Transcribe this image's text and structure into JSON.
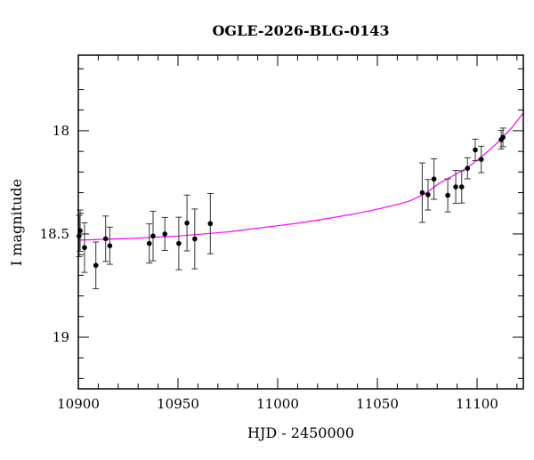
{
  "chart_data": {
    "type": "scatter",
    "title": "OGLE-2026-BLG-0143",
    "xlabel": "HJD - 2450000",
    "ylabel": "I magnitude",
    "xlim": [
      10900,
      11123.2
    ],
    "ylim": [
      19.25,
      17.634
    ],
    "y_inverted": true,
    "grid": false,
    "x_ticks": [
      10900,
      10950,
      11000,
      11050,
      11100
    ],
    "y_ticks": [
      18,
      18.5,
      19
    ],
    "x_tick_labels": [
      "10900",
      "10950",
      "11000",
      "11050",
      "11100"
    ],
    "y_tick_labels": [
      "18",
      "18.5",
      "19"
    ],
    "marker_color": "#000000",
    "model_color": "#ff00ff",
    "points": [
      {
        "x": 10900.4,
        "y": 18.51,
        "err": 0.1
      },
      {
        "x": 10900.9,
        "y": 18.484,
        "err": 0.1
      },
      {
        "x": 10903.1,
        "y": 18.566,
        "err": 0.12
      },
      {
        "x": 10908.8,
        "y": 18.652,
        "err": 0.113
      },
      {
        "x": 10913.7,
        "y": 18.523,
        "err": 0.11
      },
      {
        "x": 10915.8,
        "y": 18.557,
        "err": 0.09
      },
      {
        "x": 10935.6,
        "y": 18.546,
        "err": 0.095
      },
      {
        "x": 10937.5,
        "y": 18.51,
        "err": 0.12
      },
      {
        "x": 10943.4,
        "y": 18.5,
        "err": 0.08
      },
      {
        "x": 10950.4,
        "y": 18.546,
        "err": 0.127
      },
      {
        "x": 10954.5,
        "y": 18.447,
        "err": 0.135
      },
      {
        "x": 10958.4,
        "y": 18.524,
        "err": 0.145
      },
      {
        "x": 10966.2,
        "y": 18.45,
        "err": 0.146
      },
      {
        "x": 11072.5,
        "y": 18.3,
        "err": 0.144
      },
      {
        "x": 11075.4,
        "y": 18.31,
        "err": 0.074
      },
      {
        "x": 11078.4,
        "y": 18.234,
        "err": 0.098
      },
      {
        "x": 11085.3,
        "y": 18.313,
        "err": 0.08
      },
      {
        "x": 11089.3,
        "y": 18.272,
        "err": 0.08
      },
      {
        "x": 11092.3,
        "y": 18.272,
        "err": 0.078
      },
      {
        "x": 11095.2,
        "y": 18.182,
        "err": 0.051
      },
      {
        "x": 11099.1,
        "y": 18.093,
        "err": 0.052
      },
      {
        "x": 11102.1,
        "y": 18.139,
        "err": 0.064
      },
      {
        "x": 11112.1,
        "y": 18.043,
        "err": 0.045
      },
      {
        "x": 11113.0,
        "y": 18.032,
        "err": 0.045
      }
    ],
    "model": [
      {
        "x": 10900,
        "y": 18.53
      },
      {
        "x": 10925,
        "y": 18.522
      },
      {
        "x": 10950,
        "y": 18.51
      },
      {
        "x": 10975,
        "y": 18.49
      },
      {
        "x": 11000,
        "y": 18.46
      },
      {
        "x": 11010,
        "y": 18.448
      },
      {
        "x": 11025,
        "y": 18.425
      },
      {
        "x": 11040,
        "y": 18.4
      },
      {
        "x": 11050,
        "y": 18.38
      },
      {
        "x": 11060,
        "y": 18.357
      },
      {
        "x": 11066,
        "y": 18.341
      },
      {
        "x": 11074,
        "y": 18.305
      },
      {
        "x": 11081,
        "y": 18.254
      },
      {
        "x": 11088,
        "y": 18.218
      },
      {
        "x": 11095,
        "y": 18.18
      },
      {
        "x": 11103,
        "y": 18.12
      },
      {
        "x": 11110,
        "y": 18.06
      },
      {
        "x": 11117,
        "y": 17.99
      },
      {
        "x": 11123.2,
        "y": 17.914
      }
    ]
  }
}
